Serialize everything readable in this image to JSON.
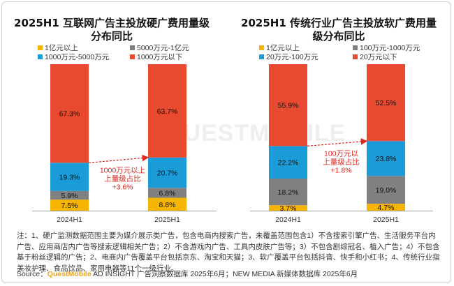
{
  "colors": {
    "red": "#e84a2f",
    "blue": "#1b9bd7",
    "gray": "#808080",
    "yellow": "#f7b500",
    "annotation": "#e0241c"
  },
  "watermark": "QUESTMOBILE",
  "chart_data": [
    {
      "type": "bar",
      "stacked": true,
      "title": "2025H1 互联网广告主投放硬广费用量级分布同比",
      "categories": [
        "2024H1",
        "2025H1"
      ],
      "legend": [
        "1亿元以上",
        "5000万元-1亿元",
        "1000万元-5000万元",
        "1000万元以下"
      ],
      "series": [
        {
          "name": "1亿元以上",
          "color": "#f7b500",
          "values": [
            7.5,
            8.8
          ]
        },
        {
          "name": "5000万元-1亿元",
          "color": "#808080",
          "values": [
            5.9,
            6.8
          ]
        },
        {
          "name": "1000万元-5000万元",
          "color": "#1b9bd7",
          "values": [
            19.3,
            20.7
          ]
        },
        {
          "name": "1000万元以下",
          "color": "#e84a2f",
          "values": [
            67.3,
            63.7
          ]
        }
      ],
      "data_labels": [
        [
          "7.5%",
          "5.9%",
          "19.3%",
          "67.3%"
        ],
        [
          "8.8%",
          "6.8%",
          "20.7%",
          "63.7%"
        ]
      ],
      "annotation": [
        "1000万元以上",
        "上量级占比",
        "+3.6%"
      ]
    },
    {
      "type": "bar",
      "stacked": true,
      "title": "2025H1 传统行业广告主投放软广费用量级分布同比",
      "categories": [
        "2024H1",
        "2025H1"
      ],
      "legend": [
        "1亿元以上",
        "100万元-1000万元",
        "20万元-100万元",
        "20万元以下"
      ],
      "series": [
        {
          "name": "1亿元以上",
          "color": "#f7b500",
          "values": [
            3.7,
            4.7
          ]
        },
        {
          "name": "100万元-1000万元",
          "color": "#808080",
          "values": [
            18.2,
            19.0
          ]
        },
        {
          "name": "20万元-100万元",
          "color": "#1b9bd7",
          "values": [
            22.2,
            23.8
          ]
        },
        {
          "name": "20万元以下",
          "color": "#e84a2f",
          "values": [
            55.9,
            52.5
          ]
        }
      ],
      "data_labels": [
        [
          "3.7%",
          "18.2%",
          "22.2%",
          "55.9%"
        ],
        [
          "4.7%",
          "19.0%",
          "23.8%",
          "52.5%"
        ]
      ],
      "annotation": [
        "100万元以",
        "上量级占比",
        "+1.8%"
      ]
    }
  ],
  "note": "注：1、硬广监测数据范围主要为媒介展示类广告，包含电商内搜索广告，未覆盖范围包含1）不含搜索引擎广告、生活服务平台内广告、应用商店内广告等搜索逻辑相关广告；2）不含游戏内广告、工具内皮肤广告等；3）不包含剧综冠名、植入广告；4）不包含基于粉丝逻辑的广告；2、电商内广告覆盖平台包括京东、淘宝和天猫；3、软广覆盖平台包括抖音、快手和小红书；4、传统行业指美妆护理、食品饮品、家用电器等11个一级行业。",
  "source": {
    "prefix": "Source：",
    "brand": "QuestMobile",
    "rest": " AD INSIGHT 广告洞察数据库 2025年6月；NEW MEDIA 新媒体数据库 2025年6月"
  }
}
